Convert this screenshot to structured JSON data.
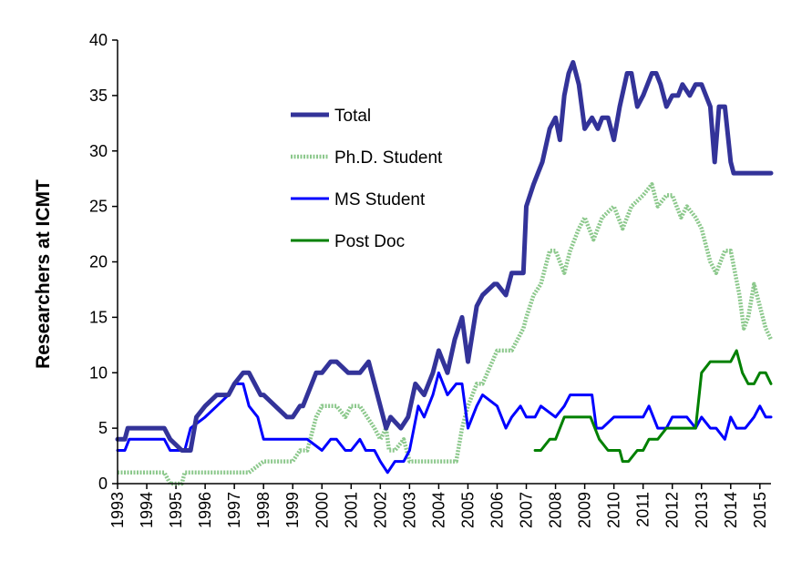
{
  "chart_data": {
    "type": "line",
    "ylabel": "Researchers  at ICMT",
    "xlabel": "",
    "ylim": [
      0,
      40
    ],
    "xlim": [
      1993,
      2015.38
    ],
    "yticks": [
      0,
      5,
      10,
      15,
      20,
      25,
      30,
      35,
      40
    ],
    "xticks": [
      "1993",
      "1994",
      "1995",
      "1996",
      "1997",
      "1998",
      "1999",
      "2000",
      "2001",
      "2002",
      "2003",
      "2004",
      "2005",
      "2006",
      "2007",
      "2008",
      "2009",
      "2010",
      "2011",
      "2012",
      "2013",
      "2014",
      "2015"
    ],
    "grid": false,
    "legend_position": "top-center",
    "series": [
      {
        "name": "Total",
        "color": "#333399",
        "style": "solid",
        "x": [
          1993.0,
          1993.25,
          1993.35,
          1994.0,
          1994.6,
          1994.8,
          1995.2,
          1995.25,
          1995.5,
          1995.7,
          1996.0,
          1996.4,
          1996.8,
          1997.0,
          1997.3,
          1997.5,
          1997.9,
          1998.0,
          1998.8,
          1999.0,
          1999.25,
          1999.35,
          1999.8,
          2000.0,
          2000.3,
          2000.5,
          2000.9,
          2001.0,
          2001.3,
          2001.6,
          2001.8,
          2002.0,
          2002.2,
          2002.35,
          2002.7,
          2002.95,
          2003.2,
          2003.5,
          2003.8,
          2004.0,
          2004.3,
          2004.55,
          2004.8,
          2005.0,
          2005.3,
          2005.5,
          2005.9,
          2006.0,
          2006.3,
          2006.5,
          2006.9,
          2007.0,
          2007.25,
          2007.4,
          2007.55,
          2007.8,
          2008.0,
          2008.15,
          2008.3,
          2008.45,
          2008.6,
          2008.8,
          2009.0,
          2009.25,
          2009.45,
          2009.6,
          2009.8,
          2010.0,
          2010.2,
          2010.45,
          2010.6,
          2010.8,
          2011.0,
          2011.3,
          2011.45,
          2011.6,
          2011.8,
          2012.0,
          2012.2,
          2012.35,
          2012.6,
          2012.8,
          2013.0,
          2013.3,
          2013.45,
          2013.6,
          2013.8,
          2014.0,
          2014.1,
          2014.2,
          2014.45,
          2014.6,
          2014.8,
          2015.0,
          2015.2,
          2015.38
        ],
        "values": [
          4,
          4,
          5,
          5,
          5,
          4,
          3,
          3,
          3,
          6,
          7,
          8,
          8,
          9,
          10,
          10,
          8,
          8,
          6,
          6,
          7,
          7,
          10,
          10,
          11,
          11,
          10,
          10,
          10,
          11,
          9,
          7,
          5,
          6,
          5,
          6,
          9,
          8,
          10,
          12,
          10,
          13,
          15,
          11,
          16,
          17,
          18,
          18,
          17,
          19,
          19,
          25,
          27,
          28,
          29,
          32,
          33,
          31,
          35,
          37,
          38,
          36,
          32,
          33,
          32,
          33,
          33,
          31,
          34,
          37,
          37,
          34,
          35,
          37,
          37,
          36,
          34,
          35,
          35,
          36,
          35,
          36,
          36,
          34,
          29,
          34,
          34,
          29,
          28,
          28,
          28,
          28,
          28,
          28,
          28,
          28
        ]
      },
      {
        "name": "Ph.D. Student",
        "color": "#8CC88C",
        "style": "dashed",
        "x": [
          1993.0,
          1994.6,
          1994.8,
          1995.2,
          1995.3,
          1995.5,
          1996.0,
          1997.3,
          1997.5,
          1998.0,
          1998.8,
          1999.0,
          1999.25,
          1999.35,
          1999.5,
          1999.8,
          2000.0,
          2000.5,
          2000.8,
          2001.0,
          2001.3,
          2001.8,
          2002.0,
          2002.2,
          2002.3,
          2002.5,
          2002.8,
          2003.0,
          2003.5,
          2004.0,
          2004.6,
          2004.8,
          2005.0,
          2005.3,
          2005.5,
          2006.0,
          2006.5,
          2006.9,
          2007.0,
          2007.25,
          2007.5,
          2007.8,
          2008.0,
          2008.3,
          2008.5,
          2008.8,
          2009.0,
          2009.3,
          2009.6,
          2010.0,
          2010.3,
          2010.6,
          2011.0,
          2011.3,
          2011.5,
          2011.8,
          2012.0,
          2012.3,
          2012.5,
          2012.8,
          2013.0,
          2013.3,
          2013.5,
          2013.8,
          2014.0,
          2014.3,
          2014.45,
          2014.6,
          2014.8,
          2015.0,
          2015.2,
          2015.38
        ],
        "values": [
          1,
          1,
          0,
          0,
          1,
          1,
          1,
          1,
          1,
          2,
          2,
          2,
          3,
          3,
          3,
          6,
          7,
          7,
          6,
          7,
          7,
          5,
          4,
          5,
          3,
          3,
          4,
          2,
          2,
          2,
          2,
          5,
          7,
          9,
          9,
          12,
          12,
          14,
          15,
          17,
          18,
          21,
          21,
          19,
          21,
          23,
          24,
          22,
          24,
          25,
          23,
          25,
          26,
          27,
          25,
          26,
          26,
          24,
          25,
          24,
          23,
          20,
          19,
          21,
          21,
          17,
          14,
          15,
          18,
          16,
          14,
          13
        ]
      },
      {
        "name": "MS Student",
        "color": "#0000FF",
        "style": "solid",
        "x": [
          1993.0,
          1993.25,
          1993.4,
          1994.0,
          1994.6,
          1994.8,
          1995.2,
          1995.3,
          1995.5,
          1996.0,
          1996.4,
          1996.8,
          1997.0,
          1997.3,
          1997.5,
          1997.8,
          1998.0,
          1999.0,
          1999.5,
          2000.0,
          2000.3,
          2000.5,
          2000.8,
          2001.0,
          2001.3,
          2001.5,
          2001.8,
          2002.0,
          2002.25,
          2002.5,
          2002.8,
          2003.0,
          2003.3,
          2003.5,
          2003.8,
          2004.0,
          2004.3,
          2004.6,
          2004.8,
          2005.0,
          2005.3,
          2005.5,
          2006.0,
          2006.3,
          2006.5,
          2006.8,
          2007.0,
          2007.3,
          2007.5,
          2008.0,
          2008.3,
          2008.5,
          2008.8,
          2009.0,
          2009.25,
          2009.4,
          2009.6,
          2010.0,
          2010.5,
          2011.0,
          2011.2,
          2011.5,
          2011.8,
          2012.0,
          2012.3,
          2012.5,
          2012.8,
          2013.0,
          2013.3,
          2013.5,
          2013.8,
          2014.0,
          2014.2,
          2014.5,
          2014.8,
          2015.0,
          2015.2,
          2015.38
        ],
        "values": [
          3,
          3,
          4,
          4,
          4,
          3,
          3,
          3,
          5,
          6,
          7,
          8,
          9,
          9,
          7,
          6,
          4,
          4,
          4,
          3,
          4,
          4,
          3,
          3,
          4,
          3,
          3,
          2,
          1,
          2,
          2,
          3,
          7,
          6,
          8,
          10,
          8,
          9,
          9,
          5,
          7,
          8,
          7,
          5,
          6,
          7,
          6,
          6,
          7,
          6,
          7,
          8,
          8,
          8,
          8,
          5,
          5,
          6,
          6,
          6,
          7,
          5,
          5,
          6,
          6,
          6,
          5,
          6,
          5,
          5,
          4,
          6,
          5,
          5,
          6,
          7,
          6,
          6
        ]
      },
      {
        "name": "Post Doc",
        "color": "#008000",
        "style": "solid",
        "x": [
          2007.3,
          2007.5,
          2007.8,
          2008.0,
          2008.3,
          2008.5,
          2008.8,
          2009.0,
          2009.2,
          2009.5,
          2009.8,
          2010.0,
          2010.2,
          2010.3,
          2010.5,
          2010.8,
          2011.0,
          2011.2,
          2011.5,
          2011.8,
          2012.0,
          2012.5,
          2012.8,
          2013.0,
          2013.3,
          2013.5,
          2013.8,
          2014.0,
          2014.2,
          2014.4,
          2014.6,
          2014.8,
          2015.0,
          2015.2,
          2015.38
        ],
        "values": [
          3,
          3,
          4,
          4,
          6,
          6,
          6,
          6,
          6,
          4,
          3,
          3,
          3,
          2,
          2,
          3,
          3,
          4,
          4,
          5,
          5,
          5,
          5,
          10,
          11,
          11,
          11,
          11,
          12,
          10,
          9,
          9,
          10,
          10,
          9
        ]
      }
    ]
  }
}
